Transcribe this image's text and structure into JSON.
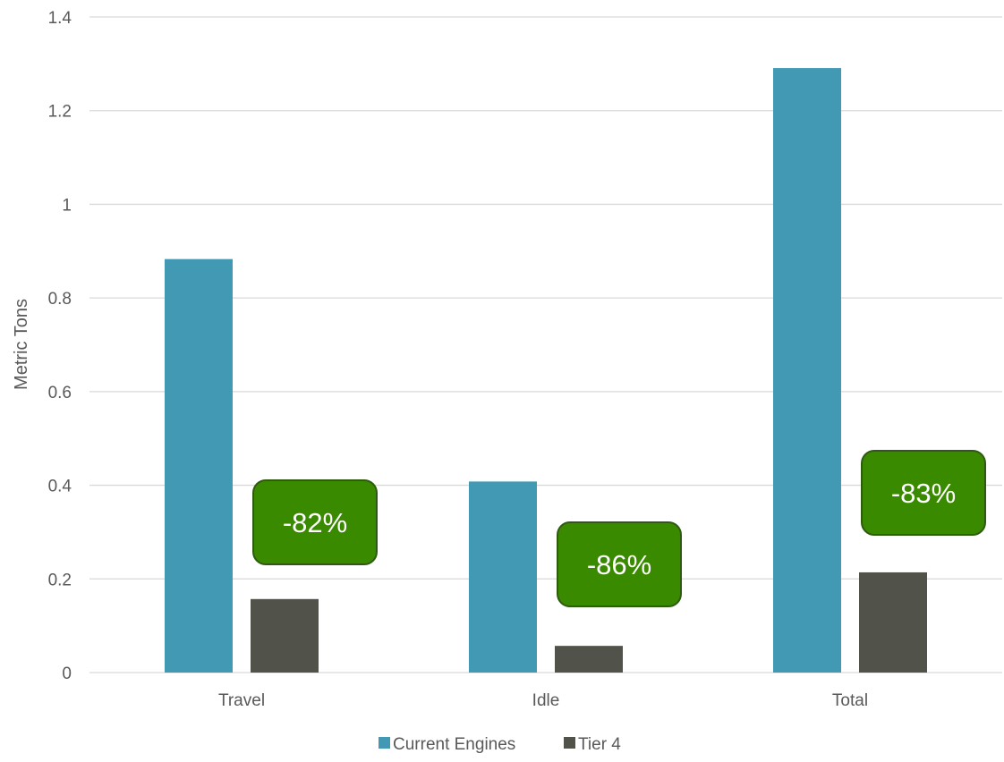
{
  "chart_data": {
    "type": "bar",
    "categories": [
      "Travel",
      "Idle",
      "Total"
    ],
    "series": [
      {
        "name": "Current Engines",
        "color": "#4299b4",
        "values": [
          0.883,
          0.408,
          1.291
        ]
      },
      {
        "name": "Tier 4",
        "color": "#515249",
        "values": [
          0.157,
          0.057,
          0.214
        ]
      }
    ],
    "ylabel": "Metric Tons",
    "ylim": [
      0,
      1.4
    ],
    "yticks": [
      "0",
      "0.2",
      "0.4",
      "0.6",
      "0.8",
      "1",
      "1.2",
      "1.4"
    ],
    "grid": true,
    "legend_position": "bottom",
    "annotations": [
      {
        "category": "Travel",
        "text": "-82%"
      },
      {
        "category": "Idle",
        "text": "-86%"
      },
      {
        "category": "Total",
        "text": "-83%"
      }
    ],
    "annotation_color": "#3a8a00"
  }
}
